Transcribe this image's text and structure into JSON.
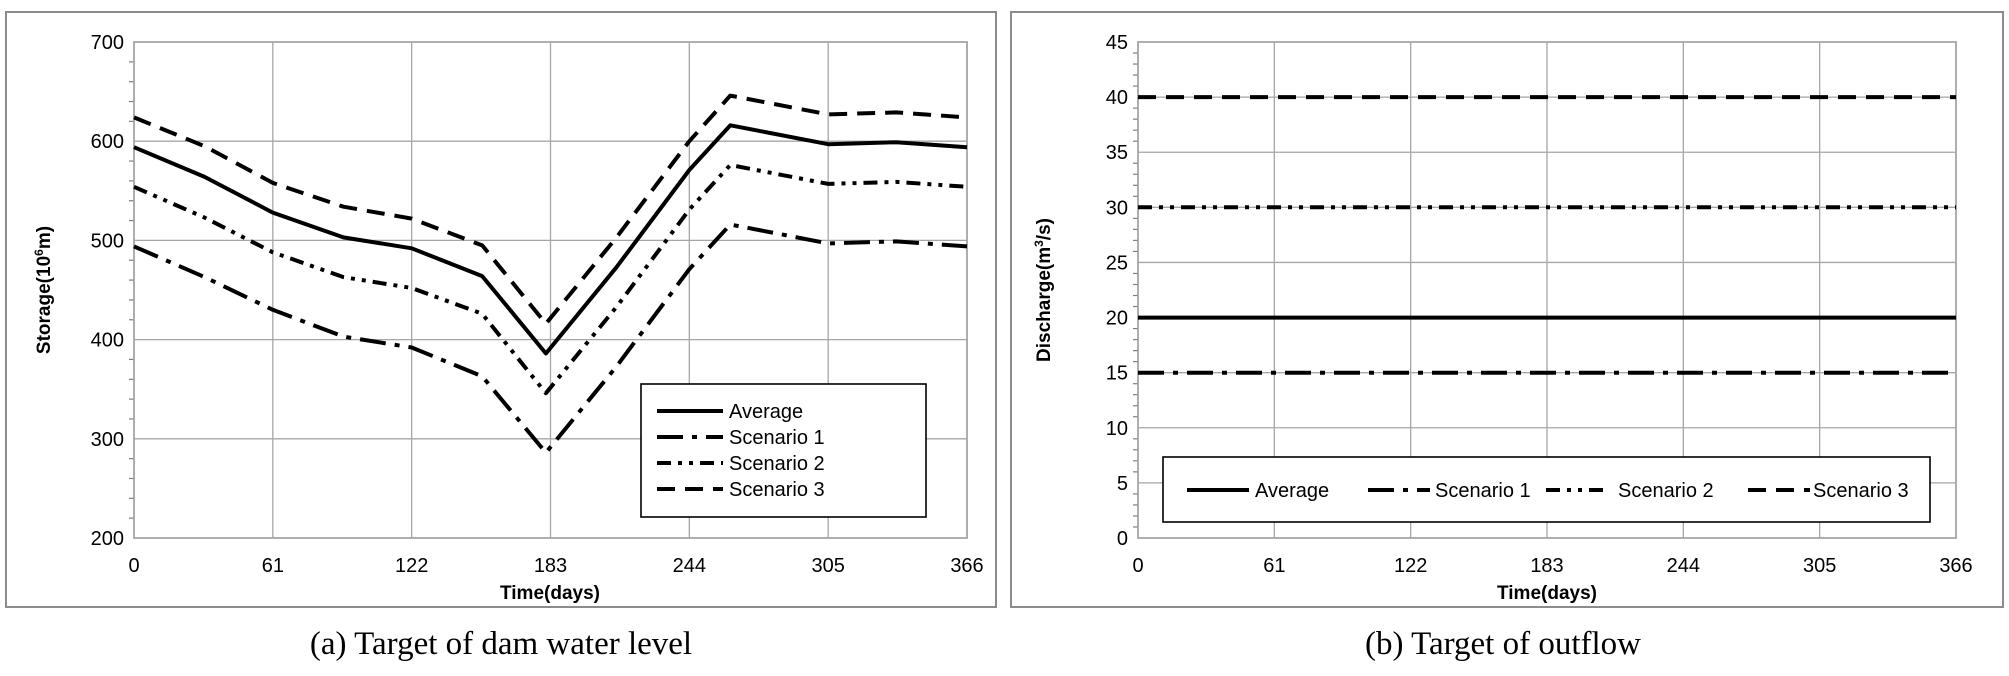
{
  "chart_data": [
    {
      "type": "line",
      "caption": "(a) Target of dam water level",
      "xlabel": "Time(days)",
      "ylabel": "Storage(10⁶m)",
      "xlim": [
        0,
        366
      ],
      "ylim": [
        200,
        700
      ],
      "xticks": [
        0,
        61,
        122,
        183,
        244,
        305,
        366
      ],
      "yticks": [
        200,
        300,
        400,
        500,
        600,
        700
      ],
      "grid": true,
      "legend": "bottom-right",
      "series": [
        {
          "name": "Average",
          "style": "solid",
          "x": [
            0,
            31,
            61,
            92,
            122,
            153,
            181,
            212,
            244,
            262,
            305,
            335,
            366
          ],
          "y": [
            594,
            564,
            528,
            503,
            492,
            464,
            386,
            473,
            571,
            616,
            597,
            599,
            594
          ]
        },
        {
          "name": "Scenario 1",
          "style": "long-dash-dot",
          "x": [
            0,
            31,
            61,
            92,
            122,
            153,
            181,
            212,
            244,
            262,
            305,
            335,
            366
          ],
          "y": [
            494,
            463,
            430,
            403,
            392,
            363,
            286,
            373,
            471,
            516,
            497,
            499,
            494
          ]
        },
        {
          "name": "Scenario 2",
          "style": "dash-dot-dot",
          "x": [
            0,
            31,
            61,
            92,
            122,
            153,
            181,
            212,
            244,
            262,
            305,
            335,
            366
          ],
          "y": [
            554,
            523,
            488,
            463,
            452,
            426,
            346,
            433,
            531,
            576,
            557,
            559,
            554
          ]
        },
        {
          "name": "Scenario 3",
          "style": "dash",
          "x": [
            0,
            31,
            61,
            92,
            122,
            153,
            181,
            212,
            244,
            262,
            305,
            335,
            366
          ],
          "y": [
            624,
            595,
            558,
            534,
            522,
            495,
            416,
            503,
            600,
            646,
            627,
            629,
            624
          ]
        }
      ]
    },
    {
      "type": "line",
      "caption": "(b) Target of outflow",
      "xlabel": "Time(days)",
      "ylabel": "Discharge(m³/s)",
      "xlim": [
        0,
        366
      ],
      "ylim": [
        0,
        45
      ],
      "xticks": [
        0,
        61,
        122,
        183,
        244,
        305,
        366
      ],
      "yticks": [
        0,
        5,
        10,
        15,
        20,
        25,
        30,
        35,
        40,
        45
      ],
      "grid": true,
      "legend": "bottom",
      "series": [
        {
          "name": "Average",
          "style": "solid",
          "x": [
            0,
            366
          ],
          "y": [
            20,
            20
          ]
        },
        {
          "name": "Scenario 1",
          "style": "long-dash-dot",
          "x": [
            0,
            366
          ],
          "y": [
            15,
            15
          ]
        },
        {
          "name": "Scenario 2",
          "style": "dash-dot-dot",
          "x": [
            0,
            366
          ],
          "y": [
            30,
            30
          ]
        },
        {
          "name": "Scenario 3",
          "style": "dash",
          "x": [
            0,
            366
          ],
          "y": [
            40,
            40
          ]
        }
      ]
    }
  ]
}
